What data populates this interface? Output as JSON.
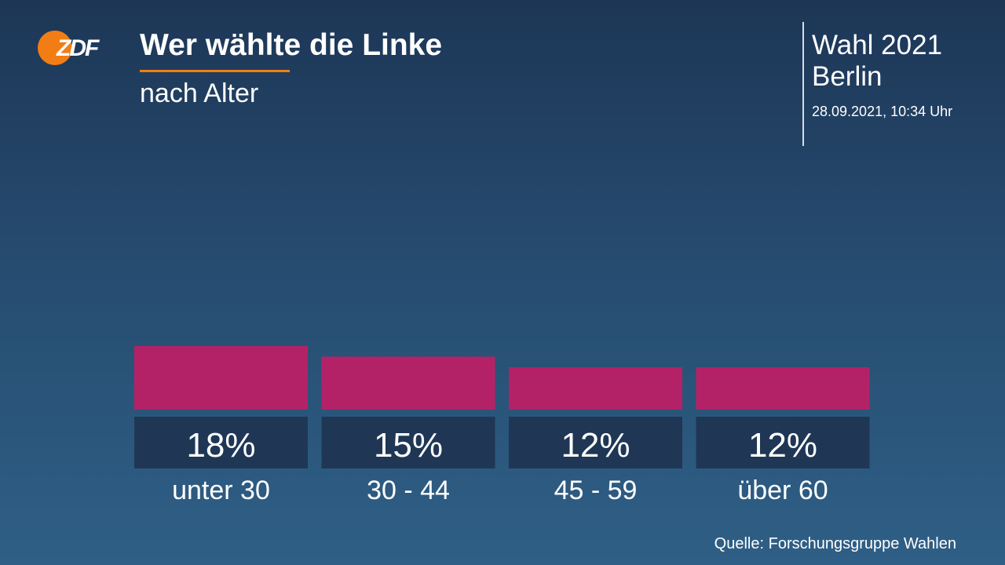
{
  "header": {
    "logo_text": "ZDF",
    "title": "Wer wählte die Linke",
    "subtitle": "nach Alter"
  },
  "info": {
    "election": "Wahl 2021",
    "region": "Berlin",
    "timestamp": "28.09.2021, 10:34 Uhr"
  },
  "source": "Quelle: Forschungsgruppe Wahlen",
  "colors": {
    "bar": "#b32267",
    "label_box": "#1f3755",
    "accent": "#f27d14"
  },
  "chart_data": {
    "type": "bar",
    "categories": [
      "unter 30",
      "30 - 44",
      "45 - 59",
      "über 60"
    ],
    "values": [
      18,
      15,
      12,
      12
    ],
    "value_labels": [
      "18%",
      "15%",
      "12%",
      "12%"
    ],
    "unit": "%",
    "title": "Wer wählte die Linke",
    "subtitle": "nach Alter",
    "ylim": [
      0,
      100
    ],
    "grid": false,
    "legend": "none"
  }
}
